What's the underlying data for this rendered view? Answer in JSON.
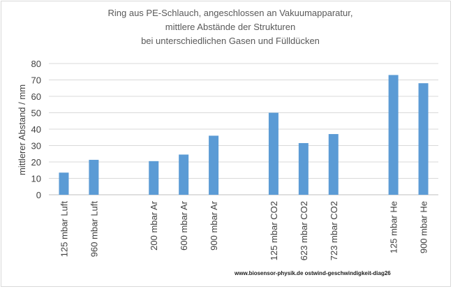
{
  "chart_data": {
    "type": "bar",
    "title_lines": [
      "Ring aus PE-Schlauch, angeschlossen an Vakuumapparatur,",
      "mittlere Abstände der Strukturen",
      "bei unterschiedlichen Gasen und Fülldücken"
    ],
    "ylabel": "mittlerer Abstand / mm",
    "xlabel": "",
    "ylim": [
      0,
      80
    ],
    "yticks": [
      0,
      10,
      20,
      30,
      40,
      50,
      60,
      70,
      80
    ],
    "grid": true,
    "legend": "none",
    "bar_color": "#5b9bd5",
    "categories": [
      "125 mbar Luft",
      "960 mbar Luft",
      "",
      "200 mbar Ar",
      "600 mbar Ar",
      "900 mbar Ar",
      "",
      "125 mbar CO2",
      "623 mbar CO2",
      "723 mbar CO2",
      "",
      "125 mbar He",
      "900 mbar He"
    ],
    "values": [
      13.5,
      21.3,
      null,
      20.5,
      24.5,
      36.0,
      null,
      50.0,
      31.5,
      37.0,
      null,
      73.0,
      68.0
    ]
  },
  "footer": "www.biosensor-physik.de  ostwind-geschwindigkeit-diag26"
}
